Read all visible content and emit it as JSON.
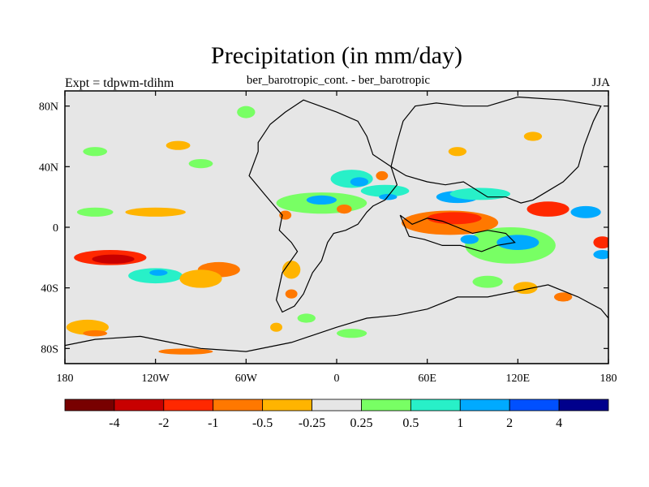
{
  "header": {
    "title": "Precipitation (in mm/day)",
    "subtitle": "ber_barotropic_cont. - ber_barotropic",
    "left_string": "Expt = tdpwm-tdihm",
    "right_string": "JJA"
  },
  "chart_data": {
    "type": "heatmap",
    "title": "Precipitation (in mm/day)",
    "subtitle": "ber_barotropic_cont. - ber_barotropic",
    "season": "JJA",
    "experiment": "Expt = tdpwm-tdihm",
    "xlim": [
      -180,
      180
    ],
    "ylim": [
      -90,
      90
    ],
    "x_ticks": [
      {
        "value": -180,
        "label": "180"
      },
      {
        "value": -120,
        "label": "120W"
      },
      {
        "value": -60,
        "label": "60W"
      },
      {
        "value": 0,
        "label": "0"
      },
      {
        "value": 60,
        "label": "60E"
      },
      {
        "value": 120,
        "label": "120E"
      },
      {
        "value": 180,
        "label": "180"
      }
    ],
    "y_ticks": [
      {
        "value": 80,
        "label": "80N"
      },
      {
        "value": 40,
        "label": "40N"
      },
      {
        "value": 0,
        "label": "0"
      },
      {
        "value": -40,
        "label": "40S"
      },
      {
        "value": -80,
        "label": "80S"
      }
    ],
    "colorbar": {
      "levels": [
        "-4",
        "-2",
        "-1",
        "-0.5",
        "-0.25",
        "0.25",
        "0.5",
        "1",
        "2",
        "4"
      ],
      "colors": [
        "#780000",
        "#c80000",
        "#ff2800",
        "#ff7800",
        "#ffb400",
        "#e6e6e6",
        "#78ff64",
        "#28f0c8",
        "#00aaff",
        "#0050ff",
        "#00008c"
      ]
    },
    "features": [
      {
        "name": "central-pacific-dry-band",
        "cls": 2,
        "lon": -150,
        "lat": -20,
        "rx": 24,
        "ry": 5
      },
      {
        "name": "central-pacific-dry-core",
        "cls": 1,
        "lon": -148,
        "lat": -21,
        "rx": 14,
        "ry": 3
      },
      {
        "name": "south-pacific-wet-1",
        "cls": 7,
        "lon": -120,
        "lat": -32,
        "rx": 18,
        "ry": 5
      },
      {
        "name": "south-pacific-wet-2",
        "cls": 8,
        "lon": -118,
        "lat": -30,
        "rx": 6,
        "ry": 2
      },
      {
        "name": "south-pacific-orange",
        "cls": 3,
        "lon": -78,
        "lat": -28,
        "rx": 14,
        "ry": 5
      },
      {
        "name": "south-pacific-yellow",
        "cls": 4,
        "lon": -90,
        "lat": -34,
        "rx": 14,
        "ry": 6
      },
      {
        "name": "far-south-pacific-yellow",
        "cls": 4,
        "lon": -165,
        "lat": -66,
        "rx": 14,
        "ry": 5
      },
      {
        "name": "far-south-pacific-orange",
        "cls": 3,
        "lon": -160,
        "lat": -70,
        "rx": 8,
        "ry": 2
      },
      {
        "name": "antarctic-orange",
        "cls": 3,
        "lon": -100,
        "lat": -82,
        "rx": 18,
        "ry": 2
      },
      {
        "name": "tropical-pacific-green",
        "cls": 6,
        "lon": -160,
        "lat": 10,
        "rx": 12,
        "ry": 3
      },
      {
        "name": "tropical-pacific-yellow",
        "cls": 4,
        "lon": -120,
        "lat": 10,
        "rx": 20,
        "ry": 3
      },
      {
        "name": "north-pacific-green",
        "cls": 6,
        "lon": -160,
        "lat": 50,
        "rx": 8,
        "ry": 3
      },
      {
        "name": "north-pacific-yellow",
        "cls": 4,
        "lon": -105,
        "lat": 54,
        "rx": 8,
        "ry": 3
      },
      {
        "name": "north-pacific-green-2",
        "cls": 6,
        "lon": -90,
        "lat": 42,
        "rx": 8,
        "ry": 3
      },
      {
        "name": "arctic-green",
        "cls": 6,
        "lon": -60,
        "lat": 76,
        "rx": 6,
        "ry": 4
      },
      {
        "name": "atlantic-wet-band",
        "cls": 6,
        "lon": -10,
        "lat": 16,
        "rx": 30,
        "ry": 7
      },
      {
        "name": "atlantic-wet-core",
        "cls": 8,
        "lon": -10,
        "lat": 18,
        "rx": 10,
        "ry": 3
      },
      {
        "name": "atlantic-dry",
        "cls": 3,
        "lon": 5,
        "lat": 12,
        "rx": 5,
        "ry": 3
      },
      {
        "name": "north-atlantic-wet",
        "cls": 7,
        "lon": 10,
        "lat": 32,
        "rx": 14,
        "ry": 6
      },
      {
        "name": "north-atlantic-blue",
        "cls": 8,
        "lon": 15,
        "lat": 30,
        "rx": 6,
        "ry": 3
      },
      {
        "name": "tethys-dry",
        "cls": 3,
        "lon": 30,
        "lat": 34,
        "rx": 4,
        "ry": 3
      },
      {
        "name": "africa-wet",
        "cls": 7,
        "lon": 32,
        "lat": 24,
        "rx": 16,
        "ry": 4
      },
      {
        "name": "africa-blue",
        "cls": 8,
        "lon": 34,
        "lat": 20,
        "rx": 6,
        "ry": 2
      },
      {
        "name": "indian-dry-band",
        "cls": 3,
        "lon": 75,
        "lat": 3,
        "rx": 32,
        "ry": 8
      },
      {
        "name": "indian-dry-core",
        "cls": 2,
        "lon": 78,
        "lat": 6,
        "rx": 18,
        "ry": 4
      },
      {
        "name": "southern-asia-blue",
        "cls": 8,
        "lon": 80,
        "lat": 20,
        "rx": 14,
        "ry": 4
      },
      {
        "name": "asia-wet",
        "cls": 7,
        "lon": 95,
        "lat": 22,
        "rx": 20,
        "ry": 4
      },
      {
        "name": "indian-ocean-wet",
        "cls": 6,
        "lon": 115,
        "lat": -12,
        "rx": 30,
        "ry": 12
      },
      {
        "name": "indian-ocean-blue",
        "cls": 8,
        "lon": 120,
        "lat": -10,
        "rx": 14,
        "ry": 5
      },
      {
        "name": "indian-ocean-blue-2",
        "cls": 8,
        "lon": 88,
        "lat": -8,
        "rx": 6,
        "ry": 3
      },
      {
        "name": "pacific-west-dry",
        "cls": 2,
        "lon": 140,
        "lat": 12,
        "rx": 14,
        "ry": 5
      },
      {
        "name": "pacific-west-blue",
        "cls": 8,
        "lon": 165,
        "lat": 10,
        "rx": 10,
        "ry": 4
      },
      {
        "name": "pacific-east-dry",
        "cls": 2,
        "lon": 176,
        "lat": -10,
        "rx": 6,
        "ry": 4
      },
      {
        "name": "pacific-east-blue",
        "cls": 8,
        "lon": 176,
        "lat": -18,
        "rx": 6,
        "ry": 3
      },
      {
        "name": "south-indian-yellow",
        "cls": 4,
        "lon": 125,
        "lat": -40,
        "rx": 8,
        "ry": 4
      },
      {
        "name": "south-indian-orange",
        "cls": 3,
        "lon": 150,
        "lat": -46,
        "rx": 6,
        "ry": 3
      },
      {
        "name": "southern-ocean-green",
        "cls": 6,
        "lon": 100,
        "lat": -36,
        "rx": 10,
        "ry": 4
      },
      {
        "name": "far-east-yellow",
        "cls": 4,
        "lon": 80,
        "lat": 50,
        "rx": 6,
        "ry": 3
      },
      {
        "name": "northern-yellow",
        "cls": 4,
        "lon": 130,
        "lat": 60,
        "rx": 6,
        "ry": 3
      },
      {
        "name": "south-atlantic-yellow",
        "cls": 4,
        "lon": -30,
        "lat": -28,
        "rx": 6,
        "ry": 6
      },
      {
        "name": "south-america-dry",
        "cls": 3,
        "lon": -30,
        "lat": -44,
        "rx": 4,
        "ry": 3
      },
      {
        "name": "south-atlantic-green",
        "cls": 6,
        "lon": -20,
        "lat": -60,
        "rx": 6,
        "ry": 3
      },
      {
        "name": "antarctic-coast-green",
        "cls": 6,
        "lon": 10,
        "lat": -70,
        "rx": 10,
        "ry": 3
      },
      {
        "name": "antarctic-coast-yellow",
        "cls": 4,
        "lon": -40,
        "lat": -66,
        "rx": 4,
        "ry": 3
      },
      {
        "name": "west-africa-dry",
        "cls": 3,
        "lon": -34,
        "lat": 8,
        "rx": 4,
        "ry": 3
      }
    ],
    "coastlines": [
      {
        "name": "north-america-south-america",
        "points": [
          [
            -52,
            50
          ],
          [
            -58,
            34
          ],
          [
            -48,
            22
          ],
          [
            -42,
            15
          ],
          [
            -36,
            8
          ],
          [
            -38,
            -2
          ],
          [
            -30,
            -10
          ],
          [
            -26,
            -16
          ],
          [
            -36,
            -30
          ],
          [
            -40,
            -48
          ],
          [
            -36,
            -56
          ],
          [
            -28,
            -52
          ],
          [
            -22,
            -44
          ],
          [
            -16,
            -30
          ],
          [
            -10,
            -22
          ],
          [
            -6,
            -10
          ],
          [
            -2,
            -4
          ],
          [
            6,
            -2
          ],
          [
            14,
            2
          ],
          [
            20,
            10
          ],
          [
            24,
            14
          ],
          [
            32,
            18
          ],
          [
            40,
            28
          ],
          [
            36,
            40
          ],
          [
            24,
            48
          ],
          [
            20,
            60
          ],
          [
            14,
            70
          ],
          [
            0,
            76
          ],
          [
            -22,
            84
          ],
          [
            -34,
            76
          ],
          [
            -44,
            68
          ],
          [
            -52,
            56
          ],
          [
            -52,
            50
          ]
        ]
      },
      {
        "name": "asia",
        "points": [
          [
            36,
            40
          ],
          [
            46,
            34
          ],
          [
            60,
            30
          ],
          [
            72,
            28
          ],
          [
            84,
            30
          ],
          [
            100,
            20
          ],
          [
            112,
            20
          ],
          [
            122,
            16
          ],
          [
            130,
            18
          ],
          [
            140,
            24
          ],
          [
            150,
            30
          ],
          [
            160,
            40
          ],
          [
            164,
            54
          ],
          [
            170,
            70
          ],
          [
            175,
            80
          ],
          [
            150,
            84
          ],
          [
            120,
            86
          ],
          [
            100,
            80
          ],
          [
            84,
            80
          ],
          [
            66,
            82
          ],
          [
            52,
            80
          ],
          [
            44,
            70
          ],
          [
            40,
            56
          ],
          [
            36,
            40
          ]
        ]
      },
      {
        "name": "india-block",
        "points": [
          [
            42,
            8
          ],
          [
            50,
            2
          ],
          [
            60,
            6
          ],
          [
            70,
            4
          ],
          [
            80,
            0
          ],
          [
            90,
            -4
          ],
          [
            100,
            -2
          ],
          [
            112,
            -4
          ],
          [
            118,
            -10
          ],
          [
            106,
            -12
          ],
          [
            96,
            -16
          ],
          [
            82,
            -12
          ],
          [
            70,
            -12
          ],
          [
            58,
            -8
          ],
          [
            48,
            -6
          ],
          [
            42,
            8
          ]
        ]
      },
      {
        "name": "antarctica-australia",
        "points": [
          [
            -130,
            -72
          ],
          [
            -110,
            -76
          ],
          [
            -90,
            -80
          ],
          [
            -60,
            -82
          ],
          [
            -30,
            -76
          ],
          [
            0,
            -66
          ],
          [
            20,
            -60
          ],
          [
            40,
            -58
          ],
          [
            60,
            -54
          ],
          [
            80,
            -46
          ],
          [
            100,
            -46
          ],
          [
            120,
            -42
          ],
          [
            140,
            -38
          ],
          [
            160,
            -46
          ],
          [
            175,
            -54
          ],
          [
            180,
            -60
          ],
          [
            180,
            -90
          ],
          [
            -180,
            -90
          ],
          [
            -180,
            -78
          ],
          [
            -160,
            -74
          ],
          [
            -130,
            -72
          ]
        ]
      }
    ]
  }
}
